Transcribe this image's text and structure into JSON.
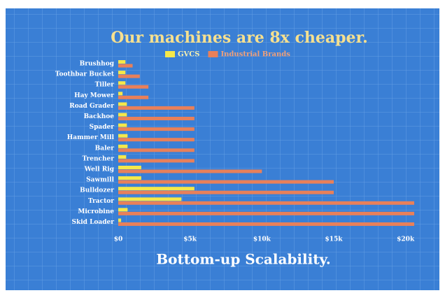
{
  "chart_data": {
    "type": "hbar",
    "title": "Our machines are 8x cheaper.",
    "subtitle": "Bottom-up Scalability.",
    "categories": [
      "Brushhog",
      "Toothbar Bucket",
      "Tiller",
      "Hay Mower",
      "Road Grader",
      "Backhoe",
      "Spader",
      "Hammer Mill",
      "Baler",
      "Trencher",
      "Well Rig",
      "Sawmill",
      "Bulldozer",
      "Tractor",
      "Microbine",
      "Skid Loader"
    ],
    "series": [
      {
        "name": "GVCS",
        "color": "#f5e84a",
        "values": [
          500,
          500,
          500,
          300,
          600,
          600,
          600,
          650,
          650,
          550,
          1600,
          1600,
          5300,
          4400,
          650,
          200
        ]
      },
      {
        "name": "Industrial Brands",
        "color": "#e8805a",
        "values": [
          1000,
          1500,
          2100,
          2100,
          5300,
          5300,
          5300,
          5300,
          5300,
          5300,
          10000,
          15000,
          15000,
          20600,
          20600,
          20600
        ]
      }
    ],
    "xlim": [
      0,
      20600
    ],
    "xticks": [
      {
        "value": 0,
        "label": "$0"
      },
      {
        "value": 5000,
        "label": "$5k"
      },
      {
        "value": 10000,
        "label": "$10k"
      },
      {
        "value": 15000,
        "label": "$15k"
      },
      {
        "value": 20000,
        "label": "$20k"
      }
    ],
    "legend": "top"
  }
}
